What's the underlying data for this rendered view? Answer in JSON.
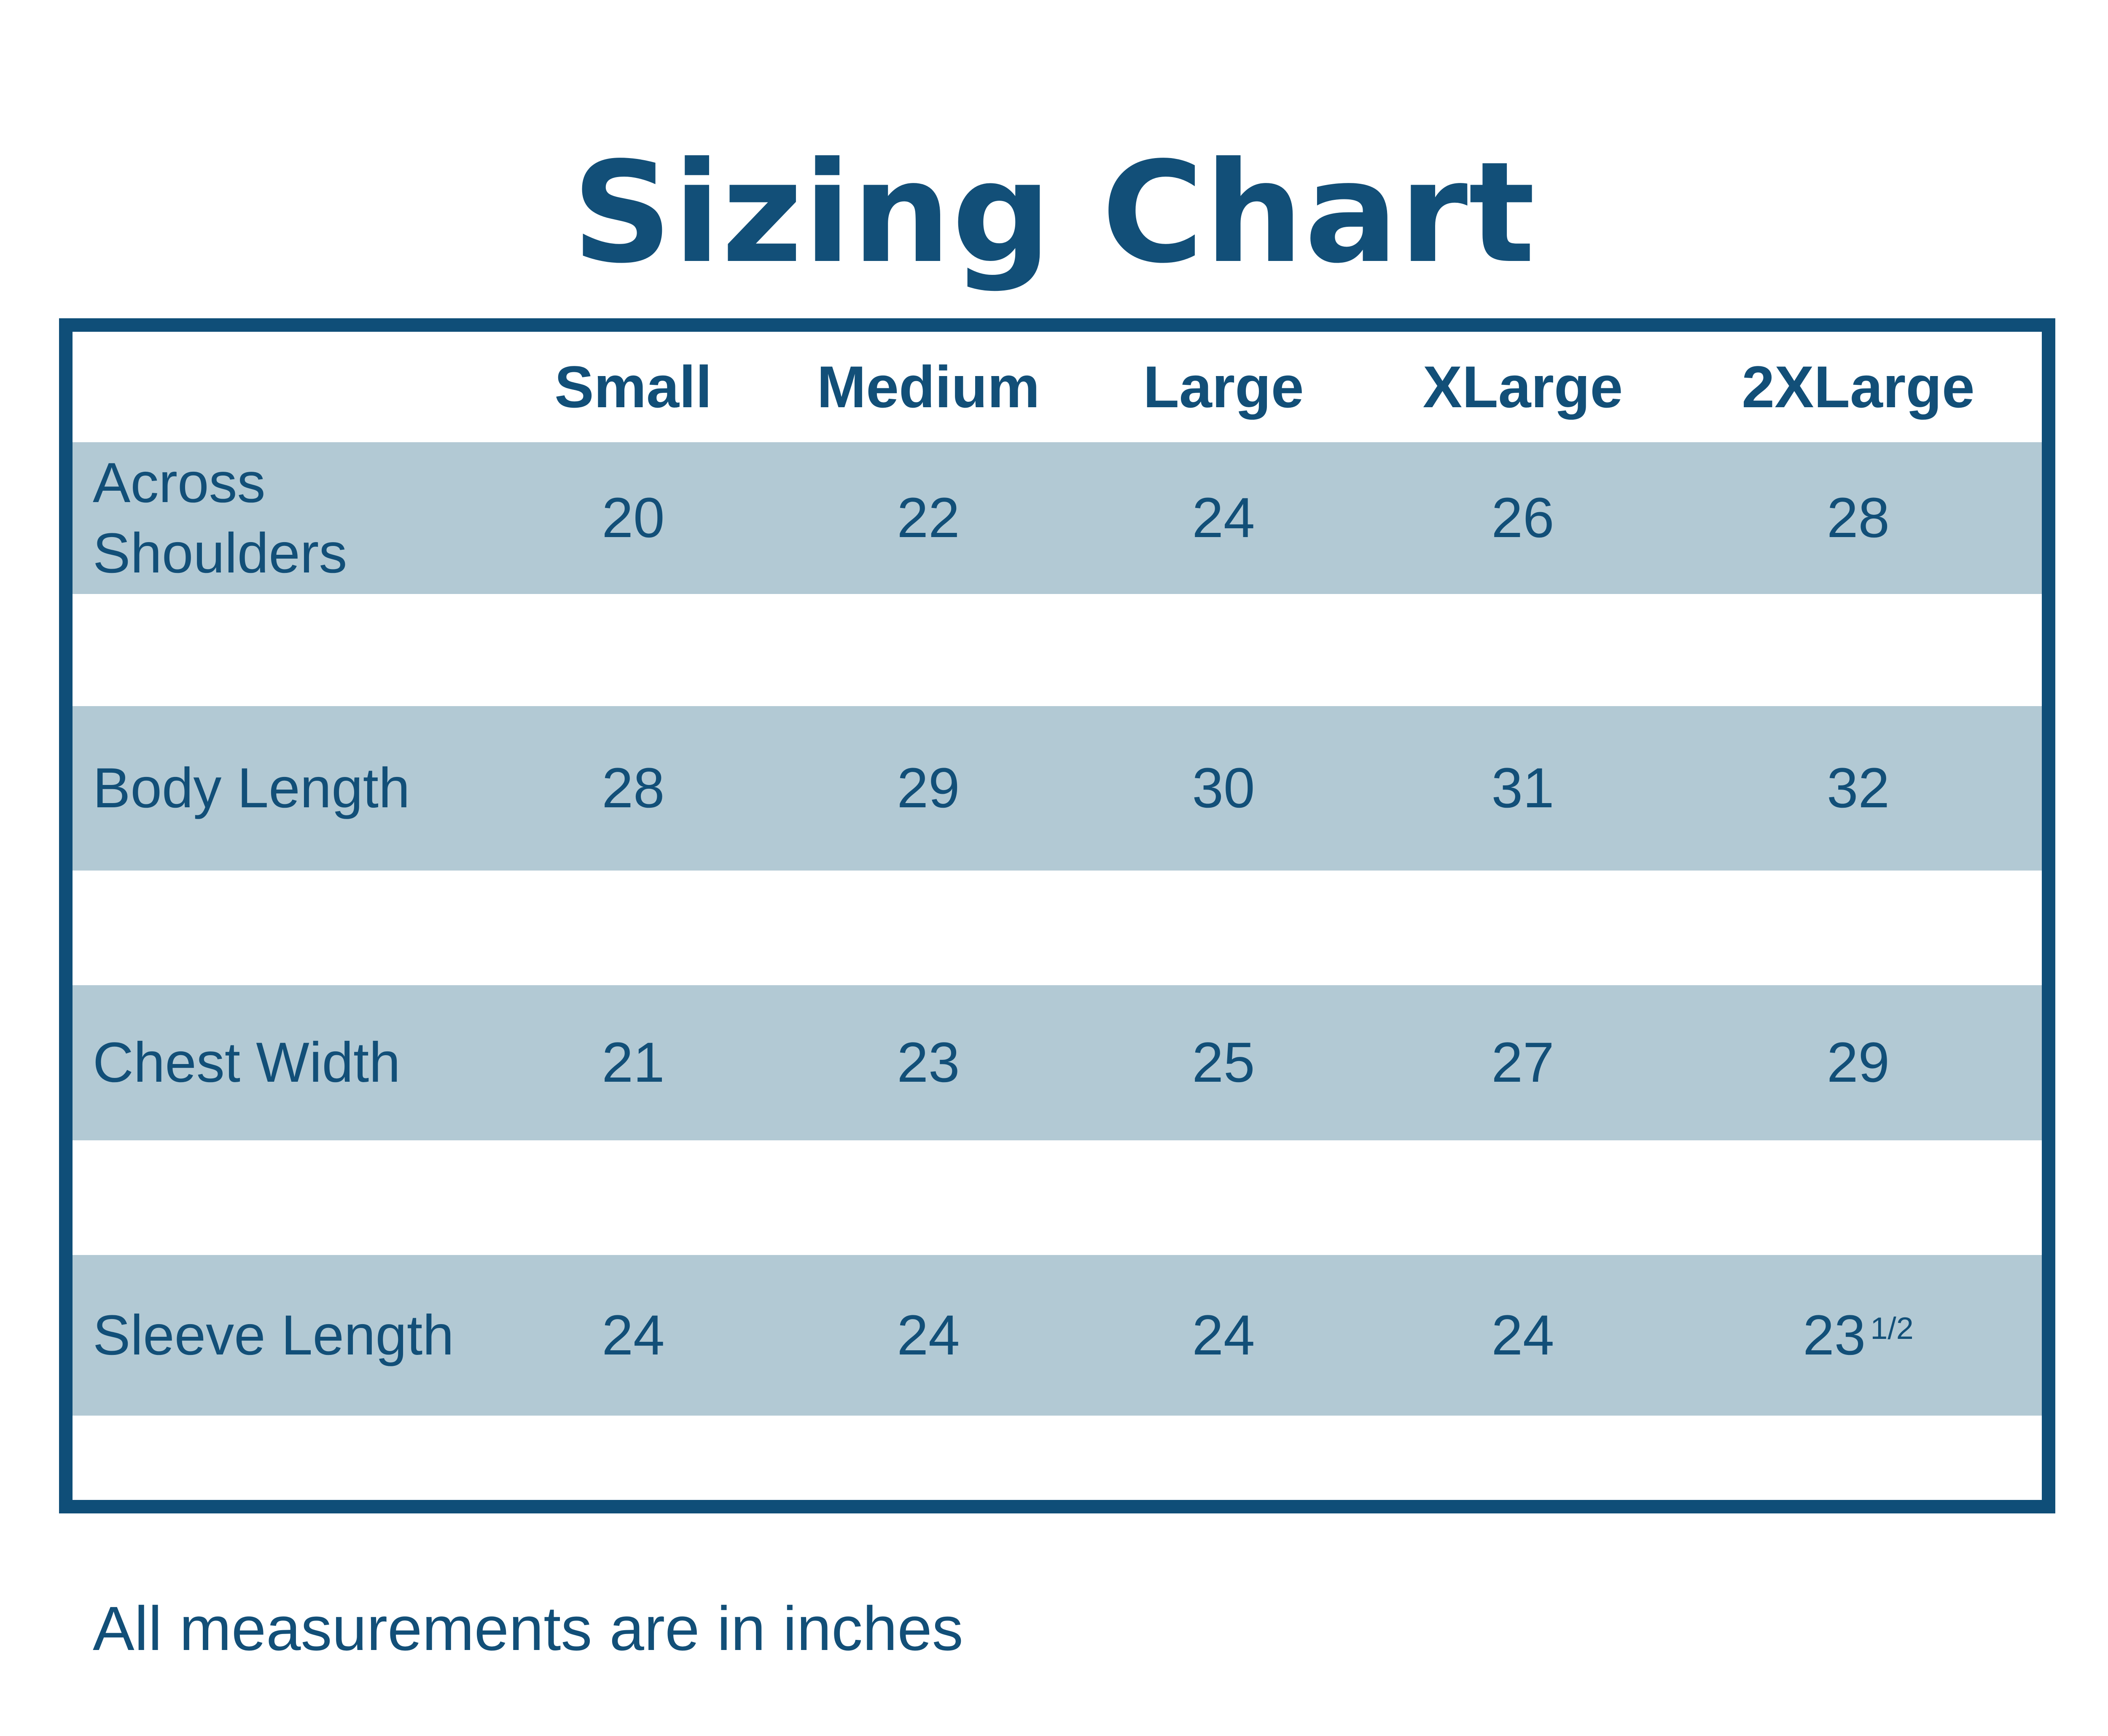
{
  "title": "Sizing Chart",
  "table": {
    "columns": [
      "Small",
      "Medium",
      "Large",
      "XLarge",
      "2XLarge"
    ],
    "rows": [
      {
        "label": "Across Shoulders",
        "values": [
          "20",
          "22",
          "24",
          "26",
          "28"
        ]
      },
      {
        "label": "Body Length",
        "values": [
          "28",
          "29",
          "30",
          "31",
          "32"
        ]
      },
      {
        "label": "Chest Width",
        "values": [
          "21",
          "23",
          "25",
          "27",
          "29"
        ]
      },
      {
        "label": "Sleeve Length",
        "values": [
          "24",
          "24",
          "24",
          "24",
          "23 1/2"
        ]
      }
    ]
  },
  "footnote": "All measurements are in inches",
  "colors": {
    "accent": "#124f78",
    "border": "#0f4e78",
    "row_background": "#b2c9d4",
    "page_background": "#ffffff"
  }
}
